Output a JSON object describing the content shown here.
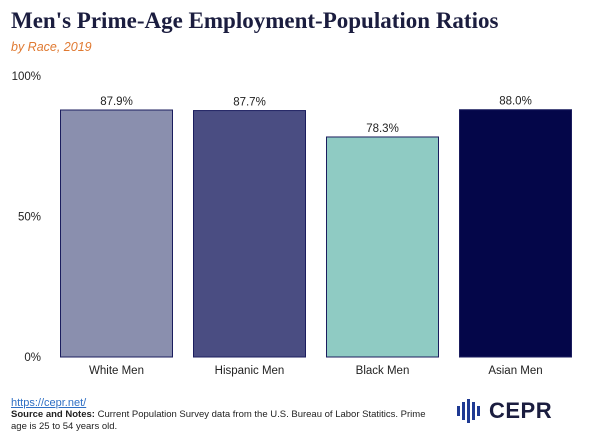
{
  "title": "Men's Prime-Age Employment-Population Ratios",
  "subtitle": "by Race, 2019",
  "footer": {
    "link": "https://cepr.net/",
    "notes_label": "Source and Notes:",
    "notes_text": "Current Population Survey data from the U.S. Bureau of Labor Statitics. Prime age is 25 to 54 years old."
  },
  "logo": {
    "text": "CEPR"
  },
  "colors": {
    "title": "#1b1d3f",
    "subtitle": "#e07a32",
    "bar_outline": "#1b1d5e"
  },
  "chart_data": {
    "type": "bar",
    "categories": [
      "White Men",
      "Hispanic Men",
      "Black Men",
      "Asian Men"
    ],
    "values": [
      87.9,
      87.7,
      78.3,
      88.0
    ],
    "value_labels": [
      "87.9%",
      "87.7%",
      "78.3%",
      "88.0%"
    ],
    "colors": [
      "#8a8fae",
      "#4a4d82",
      "#8fcbc3",
      "#040649"
    ],
    "y_ticks": [
      {
        "value": 0,
        "label": "0%"
      },
      {
        "value": 50,
        "label": "50%"
      },
      {
        "value": 100,
        "label": "100%"
      }
    ],
    "ylim": [
      0,
      100
    ],
    "grid": false,
    "legend": "none"
  }
}
